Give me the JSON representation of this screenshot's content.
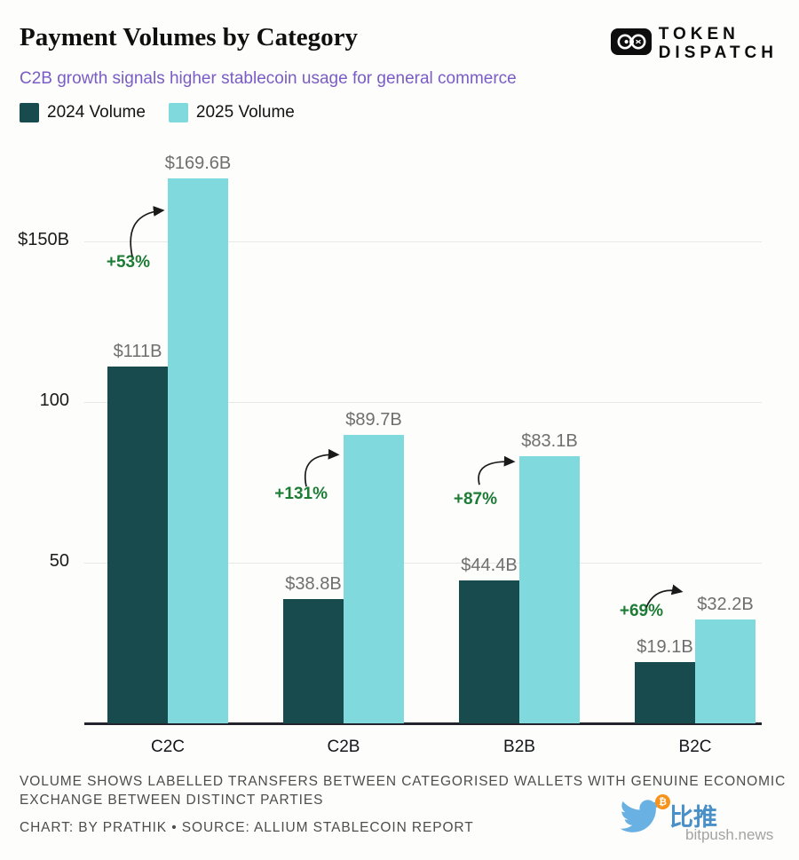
{
  "header": {
    "title": "Payment Volumes by Category",
    "subtitle": "C2B growth signals higher stablecoin usage for general commerce",
    "logo": {
      "line1": "TOKEN",
      "line2": "DISPATCH"
    }
  },
  "legend": {
    "items": [
      {
        "label": "2024 Volume",
        "color": "#174b4e"
      },
      {
        "label": "2025 Volume",
        "color": "#7fd9dd"
      }
    ]
  },
  "chart_data": {
    "type": "bar",
    "title": "Payment Volumes by Category",
    "subtitle": "C2B growth signals higher stablecoin usage for general commerce",
    "categories": [
      "C2C",
      "C2B",
      "B2B",
      "B2C"
    ],
    "series": [
      {
        "name": "2024 Volume",
        "color": "#174b4e",
        "values": [
          111,
          38.8,
          44.4,
          19.1
        ],
        "value_labels": [
          "$111B",
          "$38.8B",
          "$44.4B",
          "$19.1B"
        ]
      },
      {
        "name": "2025 Volume",
        "color": "#7fd9dd",
        "values": [
          169.6,
          89.7,
          83.1,
          32.2
        ],
        "value_labels": [
          "$169.6B",
          "$89.7B",
          "$83.1B",
          "$32.2B"
        ]
      }
    ],
    "growth_annotations": [
      "+53%",
      "+131%",
      "+87%",
      "+69%"
    ],
    "y_axis": {
      "ticks": [
        {
          "value": 50,
          "label": "50"
        },
        {
          "value": 100,
          "label": "100"
        },
        {
          "value": 150,
          "label": "$150B"
        }
      ],
      "range": [
        0,
        178
      ],
      "unit": "billions USD"
    },
    "xlabel": "",
    "ylabel": "",
    "grid": "horizontal",
    "legend_position": "top-left",
    "colors": {
      "series_2024": "#174b4e",
      "series_2025": "#7fd9dd",
      "growth_label": "#1d7c34",
      "value_label": "#6f6f6f",
      "subtitle": "#7a5cc5"
    }
  },
  "footer": {
    "note_line1": "VOLUME SHOWS LABELLED TRANSFERS BETWEEN CATEGORISED WALLETS WITH GENUINE ECONOMIC",
    "note_line2": "EXCHANGE BETWEEN DISTINCT PARTIES",
    "credit": "CHART: BY PRATHIK • SOURCE: ALLIUM STABLECOIN REPORT"
  },
  "watermark": {
    "name_cn": "比推",
    "domain": "bitpush.news",
    "badge": "₿"
  }
}
